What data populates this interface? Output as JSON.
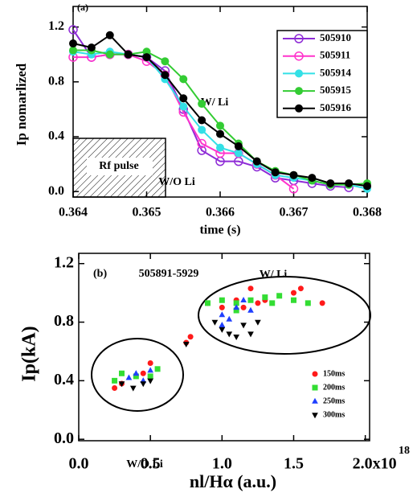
{
  "chart_data": [
    {
      "type": "line",
      "panel_label": "(a)",
      "y_label": "Ip nomarlized",
      "x_label": "time (s)",
      "x": [
        0.364,
        0.36425,
        0.3645,
        0.36475,
        0.365,
        0.36525,
        0.3655,
        0.36575,
        0.366,
        0.36625,
        0.3665,
        0.36675,
        0.367,
        0.36725,
        0.3675,
        0.36775,
        0.368
      ],
      "series": [
        {
          "name": "505910",
          "color": "#8e2bd6",
          "marker": "open-circle",
          "values": [
            1.18,
            0.98,
            1.0,
            1.0,
            0.98,
            0.88,
            0.6,
            0.3,
            0.22,
            0.22,
            0.18,
            0.1,
            0.08,
            0.06,
            0.04,
            0.03,
            null
          ]
        },
        {
          "name": "505911",
          "color": "#ff33cc",
          "marker": "open-circle",
          "values": [
            0.98,
            0.98,
            1.0,
            1.0,
            0.95,
            0.85,
            0.58,
            0.35,
            0.28,
            0.28,
            0.2,
            0.12,
            0.02,
            null,
            null,
            null,
            null
          ]
        },
        {
          "name": "505914",
          "color": "#33e0e6",
          "marker": "circle",
          "values": [
            1.02,
            1.0,
            1.02,
            1.0,
            0.98,
            0.82,
            0.62,
            0.45,
            0.32,
            0.28,
            0.2,
            0.12,
            0.1,
            0.08,
            0.05,
            0.05,
            0.02
          ]
        },
        {
          "name": "505915",
          "color": "#33cc33",
          "marker": "circle",
          "values": [
            1.03,
            1.03,
            1.0,
            1.0,
            1.02,
            0.95,
            0.82,
            0.64,
            0.48,
            0.35,
            0.22,
            0.15,
            0.12,
            0.08,
            0.05,
            0.05,
            0.06
          ]
        },
        {
          "name": "505916",
          "color": "#000000",
          "marker": "circle",
          "values": [
            1.08,
            1.05,
            1.14,
            1.0,
            0.98,
            0.85,
            0.68,
            0.52,
            0.42,
            0.33,
            0.22,
            0.14,
            0.12,
            0.1,
            0.06,
            0.06,
            0.04
          ]
        }
      ],
      "xlim": [
        0.364,
        0.368
      ],
      "xticks": [
        0.364,
        0.365,
        0.366,
        0.367,
        0.368
      ],
      "ylim": [
        -0.04,
        1.35
      ],
      "yticks": [
        {
          "value": 0,
          "label": "0.0"
        },
        0.4,
        0.8,
        1.2
      ],
      "annotations": [
        "W/ Li",
        "W/O Li",
        "Rf pulse"
      ],
      "legend": "upper right"
    },
    {
      "type": "scatter",
      "panel_label": "(b)",
      "y_label": "Ip(kA)",
      "x_label": "nl/Hα (a.u.)",
      "x_exponent": "18",
      "series": [
        {
          "name": "150ms",
          "color": "#ff1a1a",
          "marker": "circle",
          "x": [
            0.25,
            0.3,
            0.5,
            0.45,
            0.75,
            0.78,
            1.0,
            1.1,
            1.2,
            1.15,
            1.25,
            1.5,
            1.55,
            1.7,
            1.3,
            0.9
          ],
          "values": [
            0.35,
            0.38,
            0.52,
            0.45,
            0.66,
            0.7,
            0.9,
            0.95,
            1.03,
            0.9,
            0.93,
            1.0,
            1.03,
            0.93,
            0.95,
            0.93
          ]
        },
        {
          "name": "200ms",
          "color": "#33dd33",
          "marker": "square",
          "x": [
            0.25,
            0.3,
            0.4,
            0.55,
            0.5,
            0.9,
            1.0,
            1.1,
            1.2,
            1.3,
            1.35,
            1.4,
            1.5,
            1.6,
            1.1
          ],
          "values": [
            0.4,
            0.45,
            0.43,
            0.48,
            0.43,
            0.93,
            0.95,
            0.93,
            0.95,
            0.97,
            0.93,
            0.98,
            0.95,
            0.93,
            0.88
          ]
        },
        {
          "name": "250ms",
          "color": "#1f3fff",
          "marker": "triangle",
          "x": [
            0.35,
            0.45,
            0.5,
            0.4,
            1.0,
            1.05,
            1.1,
            1.15,
            1.2,
            1.0
          ],
          "values": [
            0.42,
            0.4,
            0.47,
            0.45,
            0.85,
            0.82,
            0.9,
            0.95,
            0.88,
            0.78
          ]
        },
        {
          "name": "300ms",
          "color": "#000000",
          "marker": "triangle-down",
          "x": [
            0.3,
            0.38,
            0.45,
            0.5,
            0.75,
            0.95,
            1.0,
            1.05,
            1.15,
            1.2,
            1.1,
            1.25
          ],
          "values": [
            0.38,
            0.35,
            0.38,
            0.4,
            0.65,
            0.8,
            0.75,
            0.72,
            0.78,
            0.72,
            0.7,
            0.8
          ]
        }
      ],
      "xlim": [
        0,
        2.03
      ],
      "xticks": [
        {
          "value": 0,
          "label": "0.0"
        },
        0.5,
        {
          "value": 1,
          "label": "1.0"
        },
        1.5,
        {
          "value": 2,
          "label": "2.0x10"
        }
      ],
      "ylim": [
        -0.01,
        1.27
      ],
      "yticks": [
        {
          "value": 0,
          "label": "0.0"
        },
        0.4,
        0.8,
        1.2
      ],
      "annotations": [
        "505891-5929",
        "W/ Li",
        "W/O Li"
      ],
      "legend": "lower right"
    }
  ]
}
